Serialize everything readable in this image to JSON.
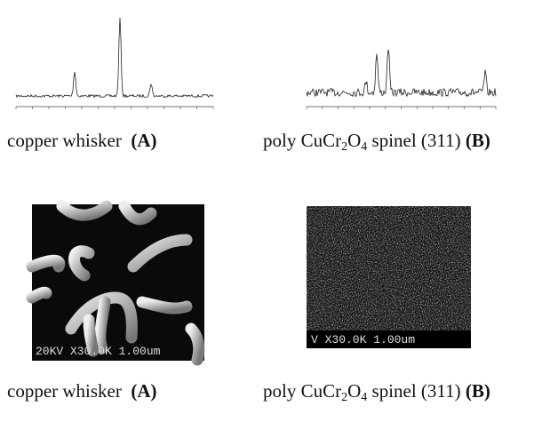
{
  "panels": [
    {
      "caption": {
        "parts": [
          "copper whisker"
        ],
        "label": "(A)"
      }
    },
    {
      "caption": {
        "parts": [
          "poly CuCr",
          "2",
          "O",
          "4",
          " spinel (311) "
        ],
        "label": "(B)"
      }
    },
    {
      "caption": {
        "parts": [
          "copper whisker"
        ],
        "label": "(A)"
      },
      "scale_text": "20KV X30.0K 1.00um"
    },
    {
      "caption": {
        "parts": [
          "poly CuCr",
          "2",
          "O",
          "4",
          " spinel (311) "
        ],
        "label": "(B)"
      },
      "scale_text": "V X30.0K 1.00um"
    }
  ]
}
